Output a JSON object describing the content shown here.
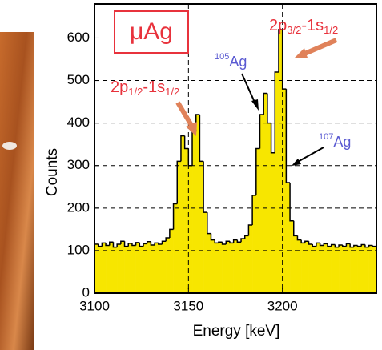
{
  "chart_data": {
    "type": "histogram",
    "xlabel": "Energy [keV]",
    "ylabel": "Counts",
    "bins": [
      3100,
      3102,
      3104,
      3106,
      3108,
      3110,
      3112,
      3114,
      3116,
      3118,
      3120,
      3122,
      3124,
      3126,
      3128,
      3130,
      3132,
      3134,
      3136,
      3138,
      3140,
      3142,
      3144,
      3146,
      3148,
      3150,
      3152,
      3154,
      3156,
      3158,
      3160,
      3162,
      3164,
      3166,
      3168,
      3170,
      3172,
      3174,
      3176,
      3178,
      3180,
      3182,
      3184,
      3186,
      3188,
      3190,
      3192,
      3194,
      3196,
      3198,
      3200,
      3202,
      3204,
      3206,
      3208,
      3210,
      3212,
      3214,
      3216,
      3218,
      3220,
      3222,
      3224,
      3226,
      3228,
      3230,
      3232,
      3234,
      3236,
      3238,
      3240,
      3242,
      3244,
      3246,
      3248,
      3250
    ],
    "values": [
      115,
      110,
      118,
      112,
      120,
      108,
      115,
      122,
      110,
      117,
      112,
      119,
      110,
      116,
      121,
      113,
      118,
      115,
      122,
      130,
      150,
      210,
      310,
      370,
      340,
      300,
      380,
      420,
      310,
      190,
      140,
      125,
      118,
      120,
      115,
      122,
      118,
      125,
      120,
      128,
      135,
      160,
      230,
      340,
      420,
      470,
      400,
      330,
      520,
      620,
      480,
      260,
      170,
      135,
      125,
      118,
      122,
      115,
      110,
      118,
      112,
      116,
      110,
      114,
      108,
      113,
      110,
      116,
      108,
      112,
      110,
      114,
      108,
      112,
      110
    ],
    "color": "#f7e600",
    "xlim": [
      3100,
      3250
    ],
    "ylim": [
      0,
      680
    ],
    "xticks": [
      3100,
      3150,
      3200
    ],
    "yticks": [
      0,
      100,
      200,
      300,
      400,
      500,
      600
    ],
    "grid": true,
    "box_label": "μAg",
    "annotations": [
      {
        "parts": [
          "2p",
          "3/2",
          "-1s",
          "1/2"
        ],
        "color": "#e8323c"
      },
      {
        "parts": [
          "2p",
          "1/2",
          "-1s",
          "1/2"
        ],
        "color": "#e8323c"
      },
      {
        "parts": [
          "105",
          "Ag"
        ],
        "color": "#5a5ad2"
      },
      {
        "parts": [
          "107",
          "Ag"
        ],
        "color": "#5a5ad2"
      }
    ]
  }
}
